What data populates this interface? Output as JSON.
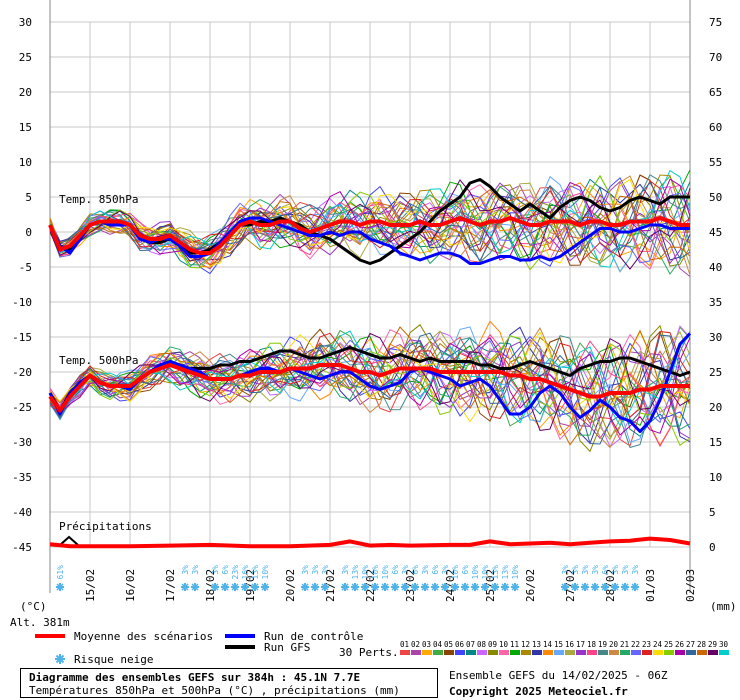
{
  "chart_data": {
    "type": "line",
    "left_axis": {
      "ticks": [
        30,
        25,
        20,
        15,
        10,
        5,
        0,
        -5,
        -10,
        -15,
        -20,
        -25,
        -30,
        -35,
        -40,
        -45
      ],
      "unit": "(°C)",
      "ylim": [
        -45,
        30
      ]
    },
    "right_axis": {
      "ticks": [
        75,
        70,
        65,
        60,
        55,
        50,
        45,
        40,
        35,
        30,
        25,
        20,
        15,
        10,
        5,
        0
      ],
      "unit": "(mm)",
      "ylim": [
        0,
        75
      ]
    },
    "x_dates": [
      "15/02",
      "16/02",
      "17/02",
      "18/02",
      "19/02",
      "20/02",
      "21/02",
      "22/02",
      "23/02",
      "24/02",
      "25/02",
      "26/02",
      "27/02",
      "28/02",
      "01/03",
      "02/03"
    ],
    "altitude": "Alt. 381m",
    "labels": {
      "t850": "Temp. 850hPa",
      "t500": "Temp. 500hPa",
      "precip": "Précipitations"
    },
    "series": {
      "t850_mean": {
        "name": "Moyenne des scénarios",
        "x": [
          0,
          6,
          12,
          18,
          24,
          30,
          36,
          42,
          48,
          54,
          60,
          66,
          72,
          78,
          84,
          90,
          96,
          102,
          108,
          114,
          120,
          126,
          132,
          138,
          144,
          150,
          156,
          162,
          168,
          174,
          180,
          186,
          192,
          198,
          204,
          210,
          216,
          222,
          228,
          234,
          240,
          246,
          252,
          258,
          264,
          270,
          276,
          282,
          288,
          294,
          300,
          306,
          312,
          318,
          324,
          330,
          336,
          342,
          348,
          354,
          360,
          366,
          372,
          378,
          384
        ],
        "values": [
          1,
          -2.5,
          -2,
          -0.5,
          1,
          1.5,
          1.5,
          1.5,
          1,
          -0.5,
          -1,
          -1,
          -0.5,
          -1.5,
          -2.5,
          -3,
          -3,
          -2,
          -0.5,
          1,
          1.5,
          1,
          1,
          1.5,
          1.5,
          0.5,
          0,
          0.5,
          1,
          1.5,
          1.5,
          1,
          1.5,
          1.5,
          1,
          1,
          1,
          1.5,
          1,
          1,
          1.5,
          2,
          1.5,
          1,
          1.5,
          1.5,
          2,
          1.5,
          1,
          1,
          1.5,
          1.5,
          1.5,
          1,
          1.5,
          1.5,
          1,
          1,
          1.5,
          1.5,
          1.5,
          2,
          1.5,
          1,
          1
        ]
      },
      "t850_control": {
        "name": "Run de contrôle",
        "x": [
          0,
          6,
          12,
          18,
          24,
          30,
          36,
          42,
          48,
          54,
          60,
          66,
          72,
          78,
          84,
          90,
          96,
          102,
          108,
          114,
          120,
          126,
          132,
          138,
          144,
          150,
          156,
          162,
          168,
          174,
          180,
          186,
          192,
          198,
          204,
          210,
          216,
          222,
          228,
          234,
          240,
          246,
          252,
          258,
          264,
          270,
          276,
          282,
          288,
          294,
          300,
          306,
          312,
          318,
          324,
          330,
          336,
          342,
          348,
          354,
          360,
          366,
          372,
          378,
          384
        ],
        "values": [
          1,
          -2,
          -3,
          -1,
          1,
          1.5,
          1,
          1,
          1,
          -1,
          -1.5,
          -1,
          -1,
          -2,
          -3.5,
          -3.5,
          -3,
          -1.5,
          0,
          1.5,
          2,
          2,
          1.5,
          1,
          0.5,
          0,
          -0.5,
          -0.5,
          0,
          -0.5,
          0,
          0,
          -1,
          -1.5,
          -2,
          -3,
          -3.5,
          -4,
          -3.5,
          -3,
          -3,
          -3.5,
          -4.5,
          -4.5,
          -4,
          -3.5,
          -3.5,
          -4,
          -4,
          -3.5,
          -4,
          -3.5,
          -2.5,
          -1.5,
          -0.5,
          0.5,
          0.5,
          0,
          0,
          0.5,
          1,
          1,
          0.5,
          0.5,
          0.5
        ]
      },
      "t850_gfs": {
        "name": "Run GFS",
        "x": [
          0,
          6,
          12,
          18,
          24,
          30,
          36,
          42,
          48,
          54,
          60,
          66,
          72,
          78,
          84,
          90,
          96,
          102,
          108,
          114,
          120,
          126,
          132,
          138,
          144,
          150,
          156,
          162,
          168,
          174,
          180,
          186,
          192,
          198,
          204,
          210,
          216,
          222,
          228,
          234,
          240,
          246,
          252,
          258,
          264,
          270,
          276,
          282,
          288,
          294,
          300,
          306,
          312,
          318,
          324,
          330,
          336,
          342,
          348,
          354,
          360,
          366,
          372,
          378,
          384
        ],
        "values": [
          1,
          -2,
          -2.5,
          -1,
          1,
          1.5,
          1.5,
          1.5,
          1,
          -1,
          -1.5,
          -1.5,
          -1,
          -2,
          -3,
          -3,
          -2.5,
          -1.5,
          0,
          1,
          1,
          1.5,
          1.5,
          2,
          1.5,
          1,
          0,
          -0.5,
          -1,
          -2,
          -3,
          -4,
          -4.5,
          -4,
          -3,
          -2,
          -1,
          0,
          1.5,
          3,
          4,
          5,
          7,
          7.5,
          6.5,
          5,
          4,
          3,
          4,
          3,
          2,
          3.5,
          4.5,
          5,
          4.5,
          3.5,
          3,
          3.5,
          4.5,
          5,
          4.5,
          4,
          5,
          5,
          5
        ]
      },
      "t500_mean": {
        "name": "Moyenne des scénarios",
        "x": [
          0,
          6,
          12,
          18,
          24,
          30,
          36,
          42,
          48,
          54,
          60,
          66,
          72,
          78,
          84,
          90,
          96,
          102,
          108,
          114,
          120,
          126,
          132,
          138,
          144,
          150,
          156,
          162,
          168,
          174,
          180,
          186,
          192,
          198,
          204,
          210,
          216,
          222,
          228,
          234,
          240,
          246,
          252,
          258,
          264,
          270,
          276,
          282,
          288,
          294,
          300,
          306,
          312,
          318,
          324,
          330,
          336,
          342,
          348,
          354,
          360,
          366,
          372,
          378,
          384
        ],
        "values": [
          -23.5,
          -25.5,
          -23.5,
          -22,
          -20.5,
          -21.5,
          -22,
          -22,
          -22,
          -21,
          -20,
          -19.5,
          -19,
          -19.5,
          -20,
          -20.5,
          -21,
          -21,
          -21,
          -20.5,
          -20.5,
          -20,
          -20,
          -20,
          -19.5,
          -19.5,
          -19.5,
          -19,
          -19,
          -19,
          -19.5,
          -20,
          -20,
          -20.5,
          -20,
          -19.5,
          -19.5,
          -19.5,
          -19.5,
          -20,
          -20,
          -20,
          -20,
          -20,
          -20,
          -20,
          -20.5,
          -20.5,
          -21,
          -21,
          -21.5,
          -22,
          -22.5,
          -23,
          -23.5,
          -23.5,
          -23,
          -23,
          -23,
          -22.5,
          -22.5,
          -22,
          -22,
          -22,
          -22
        ]
      },
      "t500_control": {
        "name": "Run de contrôle",
        "x": [
          0,
          6,
          12,
          18,
          24,
          30,
          36,
          42,
          48,
          54,
          60,
          66,
          72,
          78,
          84,
          90,
          96,
          102,
          108,
          114,
          120,
          126,
          132,
          138,
          144,
          150,
          156,
          162,
          168,
          174,
          180,
          186,
          192,
          198,
          204,
          210,
          216,
          222,
          228,
          234,
          240,
          246,
          252,
          258,
          264,
          270,
          276,
          282,
          288,
          294,
          300,
          306,
          312,
          318,
          324,
          330,
          336,
          342,
          348,
          354,
          360,
          366,
          372,
          378,
          384
        ],
        "values": [
          -23,
          -26,
          -23,
          -21.5,
          -20.5,
          -21.5,
          -22,
          -22,
          -22.5,
          -21,
          -20,
          -19,
          -18.5,
          -19,
          -19.5,
          -20,
          -21,
          -21,
          -21,
          -20.5,
          -20,
          -19.5,
          -19.5,
          -20,
          -19.5,
          -20,
          -20.5,
          -21,
          -20.5,
          -20,
          -20,
          -21,
          -22,
          -22.5,
          -22,
          -21.5,
          -20,
          -19.5,
          -20,
          -20.5,
          -21,
          -22,
          -21.5,
          -21,
          -22,
          -24,
          -26,
          -26,
          -25,
          -23,
          -22,
          -23,
          -25,
          -26.5,
          -25.5,
          -24,
          -25,
          -26.5,
          -27,
          -28.5,
          -27,
          -24,
          -20,
          -16,
          -14.5
        ]
      },
      "t500_gfs": {
        "name": "Run GFS",
        "x": [
          0,
          6,
          12,
          18,
          24,
          30,
          36,
          42,
          48,
          54,
          60,
          66,
          72,
          78,
          84,
          90,
          96,
          102,
          108,
          114,
          120,
          126,
          132,
          138,
          144,
          150,
          156,
          162,
          168,
          174,
          180,
          186,
          192,
          198,
          204,
          210,
          216,
          222,
          228,
          234,
          240,
          246,
          252,
          258,
          264,
          270,
          276,
          282,
          288,
          294,
          300,
          306,
          312,
          318,
          324,
          330,
          336,
          342,
          348,
          354,
          360,
          366,
          372,
          378,
          384
        ],
        "values": [
          -23,
          -25.5,
          -23,
          -21.5,
          -20.5,
          -21.5,
          -22,
          -22,
          -22,
          -21,
          -20,
          -19,
          -18.5,
          -19,
          -19.5,
          -19.5,
          -19.5,
          -19,
          -19,
          -18.5,
          -18.5,
          -18,
          -17.5,
          -17,
          -17,
          -17.5,
          -18,
          -18,
          -17.5,
          -17,
          -16.5,
          -17,
          -17.5,
          -18,
          -18,
          -17.5,
          -18,
          -18.5,
          -18,
          -18.5,
          -18.5,
          -18.5,
          -18.5,
          -19,
          -19,
          -19.5,
          -19.5,
          -19,
          -18.5,
          -19,
          -19.5,
          -20,
          -20.5,
          -19.5,
          -19,
          -18.5,
          -18.5,
          -18,
          -18,
          -18.5,
          -19,
          -19.5,
          -20,
          -20.5,
          -20
        ]
      },
      "precip_mean": {
        "name": "Moyenne des scénarios",
        "x": [
          0,
          12,
          24,
          48,
          72,
          96,
          120,
          144,
          168,
          180,
          192,
          204,
          216,
          240,
          252,
          264,
          276,
          288,
          300,
          312,
          324,
          336,
          348,
          360,
          372,
          384
        ],
        "values": [
          0.4,
          0.1,
          0.1,
          0.1,
          0.2,
          0.3,
          0.1,
          0.1,
          0.3,
          0.8,
          0.2,
          0.3,
          0.2,
          0.3,
          0.3,
          0.8,
          0.4,
          0.5,
          0.6,
          0.4,
          0.6,
          0.8,
          0.9,
          1.2,
          1.0,
          0.5
        ]
      }
    },
    "legend": {
      "mean": "Moyenne des scénarios",
      "control": "Run de contrôle",
      "gfs": "Run GFS",
      "perts": "30 Perts.",
      "snow": "Risque neige",
      "pert_ids": [
        "01",
        "02",
        "03",
        "04",
        "05",
        "06",
        "07",
        "08",
        "09",
        "10",
        "11",
        "12",
        "13",
        "14",
        "15",
        "16",
        "17",
        "18",
        "19",
        "20",
        "21",
        "22",
        "23",
        "24",
        "25",
        "26",
        "27",
        "28",
        "29",
        "30"
      ]
    },
    "snow_risk": [
      {
        "h": 6,
        "v": "61%"
      },
      {
        "h": 81,
        "v": "3%"
      },
      {
        "h": 87,
        "v": "3%"
      },
      {
        "h": 99,
        "v": "3%"
      },
      {
        "h": 105,
        "v": "6%"
      },
      {
        "h": 111,
        "v": "23%"
      },
      {
        "h": 117,
        "v": "16%"
      },
      {
        "h": 123,
        "v": "13%"
      },
      {
        "h": 129,
        "v": "10%"
      },
      {
        "h": 153,
        "v": "3%"
      },
      {
        "h": 159,
        "v": "3%"
      },
      {
        "h": 165,
        "v": "3%"
      },
      {
        "h": 177,
        "v": "3%"
      },
      {
        "h": 183,
        "v": "13%"
      },
      {
        "h": 189,
        "v": "10%"
      },
      {
        "h": 195,
        "v": "10%"
      },
      {
        "h": 201,
        "v": "10%"
      },
      {
        "h": 207,
        "v": "6%"
      },
      {
        "h": 213,
        "v": "3%"
      },
      {
        "h": 219,
        "v": "6%"
      },
      {
        "h": 225,
        "v": "3%"
      },
      {
        "h": 231,
        "v": "6%"
      },
      {
        "h": 237,
        "v": "3%"
      },
      {
        "h": 243,
        "v": "10%"
      },
      {
        "h": 249,
        "v": "6%"
      },
      {
        "h": 255,
        "v": "10%"
      },
      {
        "h": 261,
        "v": "10%"
      },
      {
        "h": 267,
        "v": "13%"
      },
      {
        "h": 273,
        "v": "13%"
      },
      {
        "h": 279,
        "v": "10%"
      },
      {
        "h": 309,
        "v": "3%"
      },
      {
        "h": 315,
        "v": "3%"
      },
      {
        "h": 321,
        "v": "3%"
      },
      {
        "h": 327,
        "v": "3%"
      },
      {
        "h": 333,
        "v": "6%"
      },
      {
        "h": 339,
        "v": "3%"
      },
      {
        "h": 345,
        "v": "3%"
      },
      {
        "h": 351,
        "v": "3%"
      }
    ],
    "colors": {
      "mean": "#ff0000",
      "control": "#0000ff",
      "gfs": "#000000",
      "snow": "#4fb3ea",
      "grid": "#c8c8c8",
      "perts": [
        "#ee4444",
        "#aa44aa",
        "#ffaa00",
        "#44aa44",
        "#884400",
        "#4444ff",
        "#008888",
        "#cc66ff",
        "#888800",
        "#ff66aa",
        "#00aa00",
        "#aa8800",
        "#3333aa",
        "#ff8800",
        "#66aaff",
        "#aaaa44",
        "#9933cc",
        "#ff4488",
        "#448888",
        "#cc8844",
        "#22aa66",
        "#6666ff",
        "#dd2222",
        "#ffdd00",
        "#88cc00",
        "#aa00aa",
        "#336699",
        "#cc6600",
        "#660066",
        "#00cccc"
      ]
    }
  },
  "footer": {
    "title": "Diagramme des ensembles GEFS sur 384h : 45.1N 7.7E",
    "subtitle": "Températures 850hPa et 500hPa (°C) , précipitations (mm)",
    "run": "Ensemble GEFS du 14/02/2025 - 06Z",
    "copyright": "Copyright 2025 Meteociel.fr"
  }
}
